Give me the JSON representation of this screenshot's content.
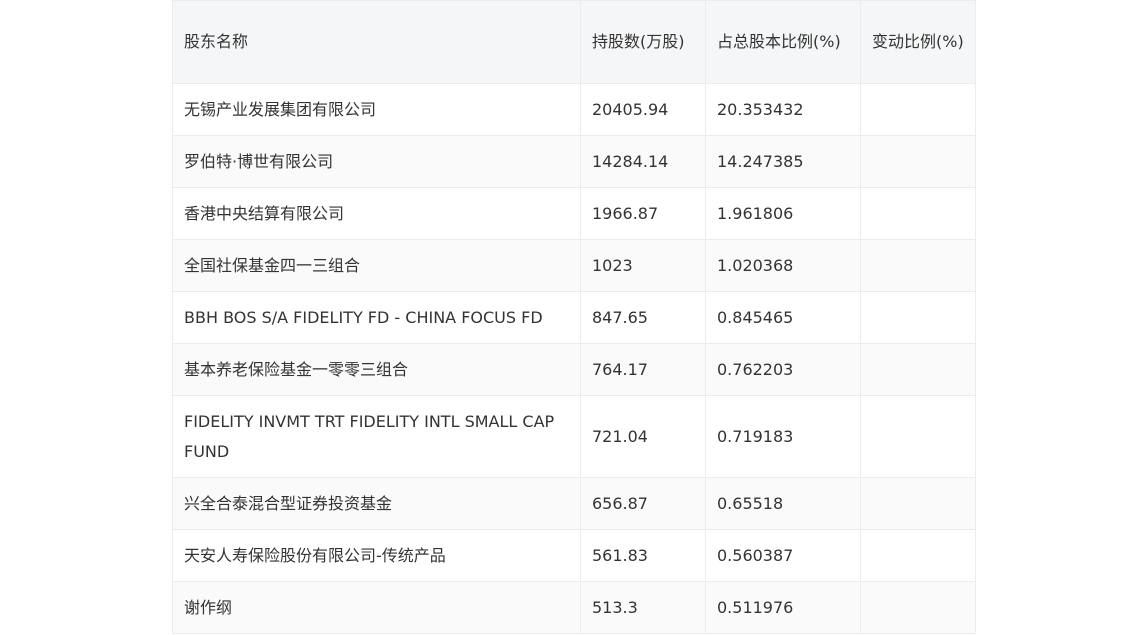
{
  "headers": [
    "股东名称",
    "持股数(万股)",
    "占总股本比例(%)",
    "变动比例(%)"
  ],
  "rows": [
    {
      "name": "无锡产业发展集团有限公司",
      "shares": "20405.94",
      "ratio": "20.353432",
      "change": ""
    },
    {
      "name": "罗伯特·博世有限公司",
      "shares": "14284.14",
      "ratio": "14.247385",
      "change": ""
    },
    {
      "name": "香港中央结算有限公司",
      "shares": "1966.87",
      "ratio": "1.961806",
      "change": ""
    },
    {
      "name": "全国社保基金四一三组合",
      "shares": "1023",
      "ratio": "1.020368",
      "change": ""
    },
    {
      "name": "BBH BOS S/A FIDELITY FD - CHINA FOCUS FD",
      "shares": "847.65",
      "ratio": "0.845465",
      "change": ""
    },
    {
      "name": "基本养老保险基金一零零三组合",
      "shares": "764.17",
      "ratio": "0.762203",
      "change": ""
    },
    {
      "name": "FIDELITY INVMT TRT FIDELITY INTL SMALL CAP FUND",
      "shares": "721.04",
      "ratio": "0.719183",
      "change": ""
    },
    {
      "name": "兴全合泰混合型证券投资基金",
      "shares": "656.87",
      "ratio": "0.65518",
      "change": ""
    },
    {
      "name": "天安人寿保险股份有限公司-传统产品",
      "shares": "561.83",
      "ratio": "0.560387",
      "change": ""
    },
    {
      "name": "谢作纲",
      "shares": "513.3",
      "ratio": "0.511976",
      "change": ""
    }
  ]
}
